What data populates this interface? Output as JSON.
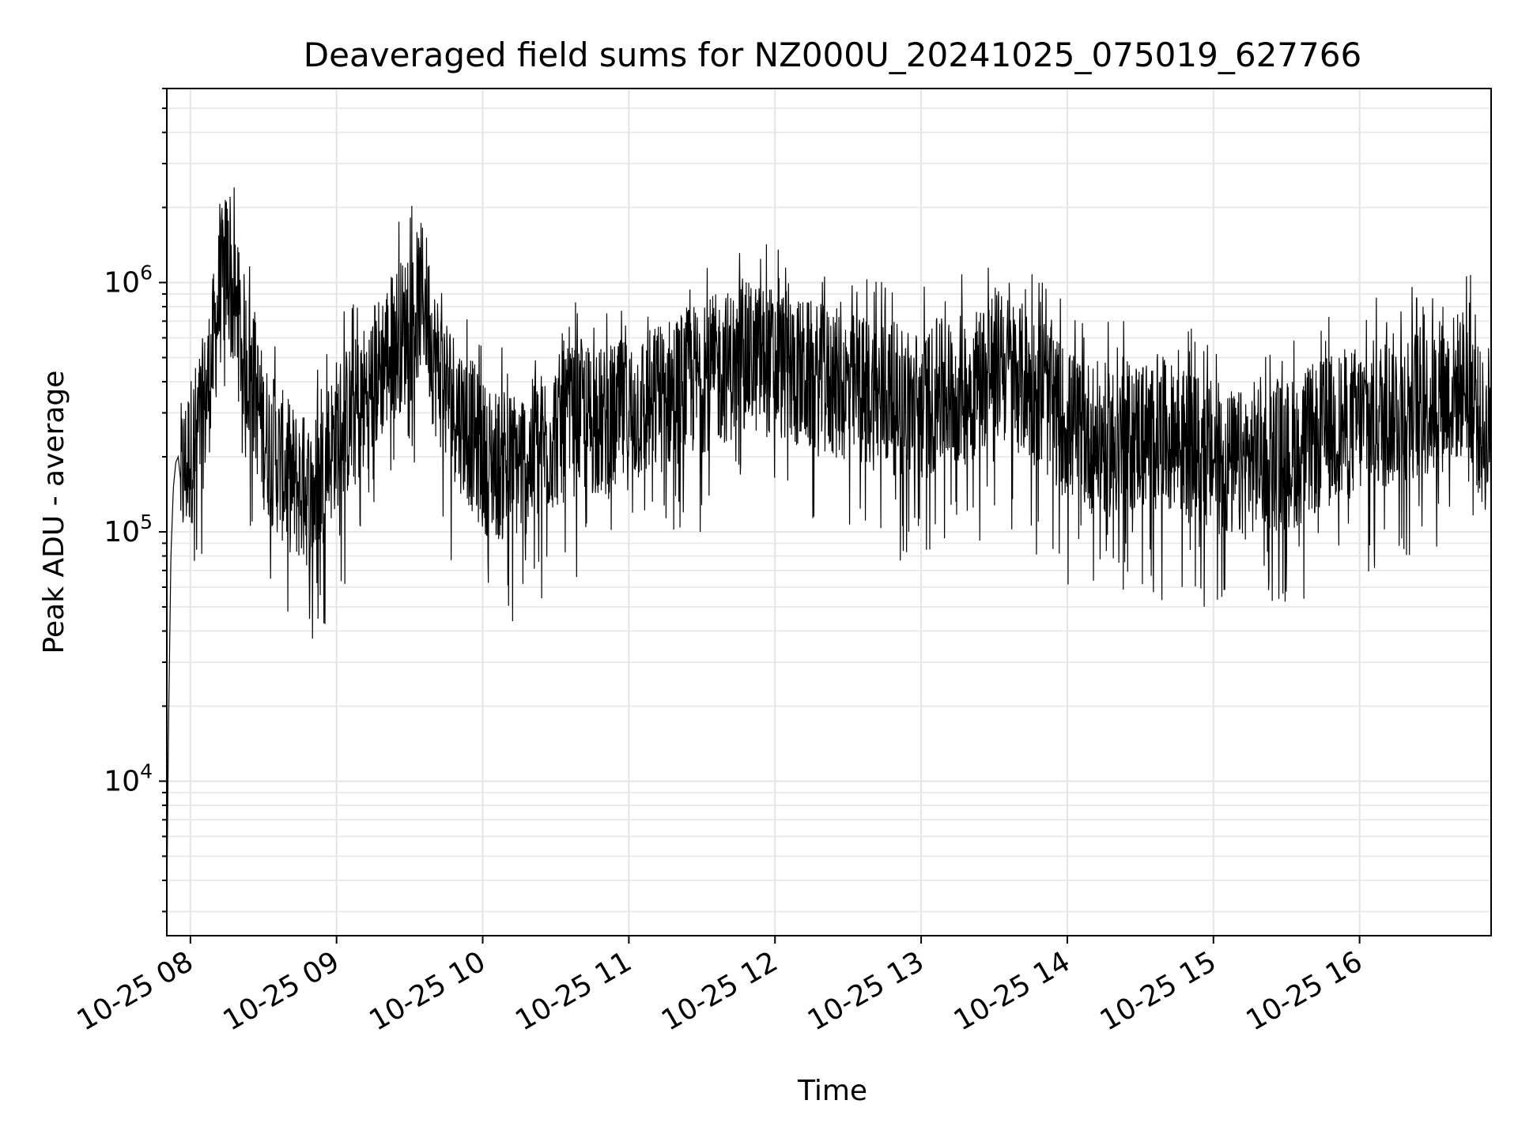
{
  "chart_data": {
    "type": "line",
    "title": "Deaveraged field sums for NZ000U_20241025_075019_627766",
    "xlabel": "Time",
    "ylabel": "Peak ADU - average",
    "y_scale": "log",
    "grid": true,
    "grid_minor": true,
    "legend": "none",
    "line_color": "#000000",
    "grid_color": "#e6e6e6",
    "xlim": [
      "2024-10-25 07:50:19",
      "2024-10-25 16:54:00"
    ],
    "ylim": [
      2400,
      6000000
    ],
    "x_ticks": [
      "2024-10-25 08:00",
      "2024-10-25 09:00",
      "2024-10-25 10:00",
      "2024-10-25 11:00",
      "2024-10-25 12:00",
      "2024-10-25 13:00",
      "2024-10-25 14:00",
      "2024-10-25 15:00",
      "2024-10-25 16:00"
    ],
    "x_tick_labels": [
      "10-25 08",
      "10-25 09",
      "10-25 10",
      "10-25 11",
      "10-25 12",
      "10-25 13",
      "10-25 14",
      "10-25 15",
      "10-25 16"
    ],
    "y_ticks": [
      10000,
      100000,
      1000000
    ],
    "y_tick_labels": [
      {
        "base": "10",
        "exp": "4"
      },
      {
        "base": "10",
        "exp": "5"
      },
      {
        "base": "10",
        "exp": "6"
      }
    ],
    "series": [
      {
        "x": [
          "2024-10-25 07:50:19",
          "2024-10-25 07:51:00",
          "2024-10-25 07:52:00",
          "2024-10-25 07:53:00",
          "2024-10-25 07:54:00",
          "2024-10-25 07:55:00",
          "2024-10-25 07:56:00",
          "2024-10-25 07:58:00",
          "2024-10-25 08:00:00",
          "2024-10-25 08:03:00",
          "2024-10-25 08:06:00",
          "2024-10-25 08:09:00",
          "2024-10-25 08:12:00",
          "2024-10-25 08:15:00",
          "2024-10-25 08:18:00",
          "2024-10-25 08:21:00",
          "2024-10-25 08:24:00",
          "2024-10-25 08:27:00",
          "2024-10-25 08:30:00",
          "2024-10-25 08:35:00",
          "2024-10-25 08:40:00",
          "2024-10-25 08:45:00",
          "2024-10-25 08:50:00",
          "2024-10-25 08:55:00",
          "2024-10-25 09:00:00",
          "2024-10-25 09:05:00",
          "2024-10-25 09:10:00",
          "2024-10-25 09:15:00",
          "2024-10-25 09:20:00",
          "2024-10-25 09:25:00",
          "2024-10-25 09:30:00",
          "2024-10-25 09:33:00",
          "2024-10-25 09:36:00",
          "2024-10-25 09:40:00",
          "2024-10-25 09:45:00",
          "2024-10-25 09:50:00",
          "2024-10-25 09:55:00",
          "2024-10-25 10:00:00",
          "2024-10-25 10:10:00",
          "2024-10-25 10:20:00",
          "2024-10-25 10:30:00",
          "2024-10-25 10:40:00",
          "2024-10-25 10:50:00",
          "2024-10-25 11:00:00",
          "2024-10-25 11:10:00",
          "2024-10-25 11:20:00",
          "2024-10-25 11:30:00",
          "2024-10-25 11:40:00",
          "2024-10-25 11:50:00",
          "2024-10-25 12:00:00",
          "2024-10-25 12:10:00",
          "2024-10-25 12:20:00",
          "2024-10-25 12:30:00",
          "2024-10-25 12:40:00",
          "2024-10-25 12:50:00",
          "2024-10-25 13:00:00",
          "2024-10-25 13:10:00",
          "2024-10-25 13:20:00",
          "2024-10-25 13:30:00",
          "2024-10-25 13:40:00",
          "2024-10-25 13:50:00",
          "2024-10-25 14:00:00",
          "2024-10-25 14:10:00",
          "2024-10-25 14:20:00",
          "2024-10-25 14:30:00",
          "2024-10-25 14:40:00",
          "2024-10-25 14:50:00",
          "2024-10-25 15:00:00",
          "2024-10-25 15:10:00",
          "2024-10-25 15:20:00",
          "2024-10-25 15:30:00",
          "2024-10-25 15:40:00",
          "2024-10-25 15:50:00",
          "2024-10-25 16:00:00",
          "2024-10-25 16:10:00",
          "2024-10-25 16:20:00",
          "2024-10-25 16:30:00",
          "2024-10-25 16:40:00",
          "2024-10-25 16:45:00",
          "2024-10-25 16:48:00",
          "2024-10-25 16:50:00",
          "2024-10-25 16:54:00"
        ],
        "y": [
          3300,
          16000,
          80000,
          150000,
          190000,
          200000,
          160000,
          180000,
          210000,
          250000,
          320000,
          500000,
          900000,
          1200000,
          800000,
          600000,
          450000,
          350000,
          250000,
          200000,
          170000,
          150000,
          140000,
          180000,
          250000,
          280000,
          320000,
          400000,
          500000,
          600000,
          650000,
          800000,
          900000,
          500000,
          380000,
          300000,
          250000,
          200000,
          180000,
          200000,
          250000,
          290000,
          270000,
          300000,
          330000,
          380000,
          420000,
          460000,
          500000,
          480000,
          430000,
          400000,
          380000,
          360000,
          340000,
          320000,
          360000,
          380000,
          480000,
          420000,
          350000,
          270000,
          240000,
          230000,
          250000,
          240000,
          220000,
          200000,
          180000,
          210000,
          200000,
          230000,
          260000,
          280000,
          300000,
          330000,
          330000,
          380000,
          420000,
          300000,
          250000,
          230000
        ]
      }
    ]
  }
}
